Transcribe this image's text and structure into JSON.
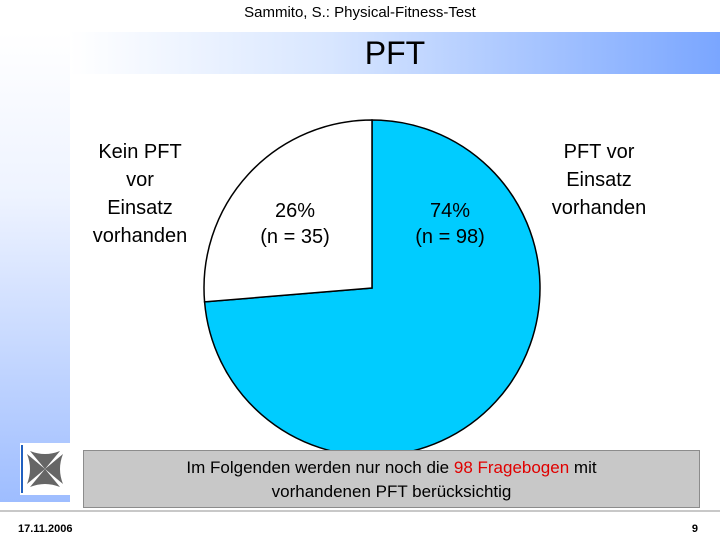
{
  "header": {
    "text": "Sammito, S.: Physical-Fitness-Test"
  },
  "slide": {
    "title": "PFT"
  },
  "chart_data": {
    "type": "pie",
    "title": "",
    "categories": [
      "Kein PFT vor Einsatz vorhanden",
      "PFT vor Einsatz vorhanden"
    ],
    "values": [
      35,
      98
    ],
    "percent_labels": [
      "26%",
      "74%"
    ],
    "count_labels": [
      "(n = 35)",
      "(n = 98)"
    ],
    "colors": [
      "#ffffff",
      "#00ccff"
    ],
    "legend": "labels beside slices",
    "label_left_lines": [
      "Kein PFT",
      "vor",
      "Einsatz",
      "vorhanden"
    ],
    "label_right_lines": [
      "PFT vor",
      "Einsatz",
      "vorhanden"
    ]
  },
  "note": {
    "line1_pre": "Im Folgenden werden nur noch die ",
    "line1_red": "98 Fragebogen",
    "line1_post": " mit",
    "line2": "vorhandenen PFT berücksichtig"
  },
  "footer": {
    "date": "17.11.2006",
    "page": "9"
  }
}
